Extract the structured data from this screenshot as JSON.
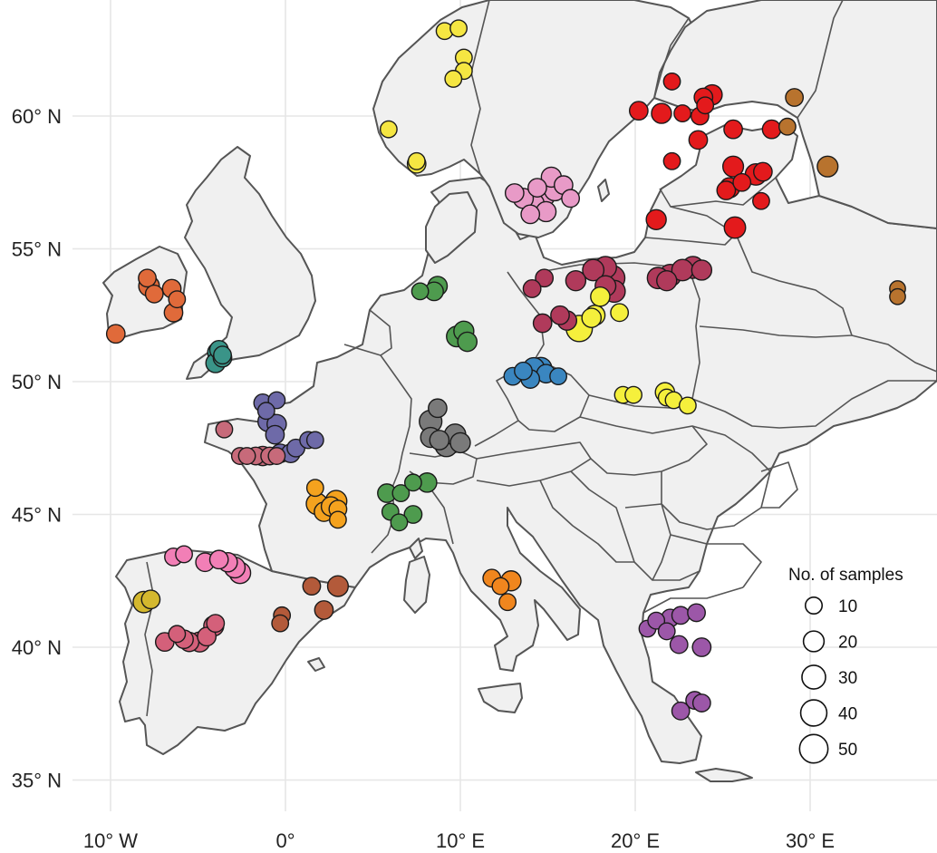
{
  "chart_data": {
    "type": "scatter",
    "x_axis": {
      "ticks": [
        {
          "value": -10,
          "label": "10° W"
        },
        {
          "value": 0,
          "label": "0°"
        },
        {
          "value": 10,
          "label": "10° E"
        },
        {
          "value": 20,
          "label": "20° E"
        },
        {
          "value": 30,
          "label": "30° E"
        }
      ],
      "range": [
        -11,
        36
      ]
    },
    "y_axis": {
      "ticks": [
        {
          "value": 60,
          "label": "60° N"
        },
        {
          "value": 55,
          "label": "55° N"
        },
        {
          "value": 50,
          "label": "50° N"
        },
        {
          "value": 45,
          "label": "45° N"
        },
        {
          "value": 40,
          "label": "40° N"
        },
        {
          "value": 35,
          "label": "35° N"
        }
      ],
      "range": [
        34.2,
        63.5
      ]
    },
    "grid": true,
    "legend": {
      "title": "No. of samples",
      "placement": "bottom-right",
      "sizes": [
        {
          "value": 10,
          "label": "10"
        },
        {
          "value": 20,
          "label": "20"
        },
        {
          "value": 30,
          "label": "30"
        },
        {
          "value": 40,
          "label": "40"
        },
        {
          "value": 50,
          "label": "50"
        }
      ]
    },
    "points": [
      {
        "lon": 9.1,
        "lat": 63.2,
        "n": 10,
        "color": "#f5e642"
      },
      {
        "lon": 9.9,
        "lat": 63.3,
        "n": 10,
        "color": "#f5e642"
      },
      {
        "lon": 10.2,
        "lat": 62.2,
        "n": 10,
        "color": "#f5e642"
      },
      {
        "lon": 10.2,
        "lat": 61.7,
        "n": 10,
        "color": "#f5e642"
      },
      {
        "lon": 9.6,
        "lat": 61.4,
        "n": 10,
        "color": "#f5e642"
      },
      {
        "lon": 5.9,
        "lat": 59.5,
        "n": 10,
        "color": "#f5e642"
      },
      {
        "lon": 7.5,
        "lat": 58.3,
        "n": 10,
        "color": "#f5e642"
      },
      {
        "lon": 7.5,
        "lat": 58.2,
        "n": 14,
        "color": "#f5e642"
      },
      {
        "lon": 15.2,
        "lat": 57.7,
        "n": 18,
        "color": "#e89ac7"
      },
      {
        "lon": 15.4,
        "lat": 57.2,
        "n": 20,
        "color": "#e89ac7"
      },
      {
        "lon": 14.8,
        "lat": 57.0,
        "n": 22,
        "color": "#e89ac7"
      },
      {
        "lon": 13.1,
        "lat": 57.1,
        "n": 14,
        "color": "#e89ac7"
      },
      {
        "lon": 13.6,
        "lat": 56.9,
        "n": 18,
        "color": "#e89ac7"
      },
      {
        "lon": 14.2,
        "lat": 56.7,
        "n": 20,
        "color": "#e89ac7"
      },
      {
        "lon": 14.9,
        "lat": 56.4,
        "n": 18,
        "color": "#e89ac7"
      },
      {
        "lon": 14.0,
        "lat": 56.3,
        "n": 14,
        "color": "#e89ac7"
      },
      {
        "lon": 16.3,
        "lat": 56.9,
        "n": 12,
        "color": "#e89ac7"
      },
      {
        "lon": 15.9,
        "lat": 57.4,
        "n": 14,
        "color": "#e89ac7"
      },
      {
        "lon": 14.4,
        "lat": 57.3,
        "n": 14,
        "color": "#e89ac7"
      },
      {
        "lon": 22.1,
        "lat": 61.3,
        "n": 10,
        "color": "#e31a1c"
      },
      {
        "lon": 24.4,
        "lat": 60.8,
        "n": 18,
        "color": "#e31a1c"
      },
      {
        "lon": 23.9,
        "lat": 60.7,
        "n": 14,
        "color": "#e31a1c"
      },
      {
        "lon": 24.0,
        "lat": 60.4,
        "n": 10,
        "color": "#e31a1c"
      },
      {
        "lon": 20.2,
        "lat": 60.2,
        "n": 14,
        "color": "#e31a1c"
      },
      {
        "lon": 21.5,
        "lat": 60.1,
        "n": 18,
        "color": "#e31a1c"
      },
      {
        "lon": 22.7,
        "lat": 60.1,
        "n": 10,
        "color": "#e31a1c"
      },
      {
        "lon": 23.7,
        "lat": 60.0,
        "n": 12,
        "color": "#e31a1c"
      },
      {
        "lon": 25.6,
        "lat": 59.5,
        "n": 14,
        "color": "#e31a1c"
      },
      {
        "lon": 27.8,
        "lat": 59.5,
        "n": 14,
        "color": "#e31a1c"
      },
      {
        "lon": 23.6,
        "lat": 59.1,
        "n": 14,
        "color": "#e31a1c"
      },
      {
        "lon": 22.1,
        "lat": 58.3,
        "n": 10,
        "color": "#e31a1c"
      },
      {
        "lon": 25.6,
        "lat": 58.1,
        "n": 20,
        "color": "#e31a1c"
      },
      {
        "lon": 26.9,
        "lat": 57.8,
        "n": 22,
        "color": "#e31a1c"
      },
      {
        "lon": 27.3,
        "lat": 57.9,
        "n": 14,
        "color": "#e31a1c"
      },
      {
        "lon": 25.4,
        "lat": 57.3,
        "n": 18,
        "color": "#e31a1c"
      },
      {
        "lon": 25.2,
        "lat": 57.2,
        "n": 14,
        "color": "#e31a1c"
      },
      {
        "lon": 26.1,
        "lat": 57.5,
        "n": 12,
        "color": "#e31a1c"
      },
      {
        "lon": 27.2,
        "lat": 56.8,
        "n": 10,
        "color": "#e31a1c"
      },
      {
        "lon": 21.2,
        "lat": 56.1,
        "n": 18,
        "color": "#e31a1c"
      },
      {
        "lon": 25.7,
        "lat": 55.8,
        "n": 22,
        "color": "#e31a1c"
      },
      {
        "lon": 29.1,
        "lat": 60.7,
        "n": 12,
        "color": "#b8732e"
      },
      {
        "lon": 28.7,
        "lat": 59.6,
        "n": 10,
        "color": "#b8732e"
      },
      {
        "lon": 31.0,
        "lat": 58.1,
        "n": 20,
        "color": "#b8732e"
      },
      {
        "lon": 35.0,
        "lat": 53.5,
        "n": 8,
        "color": "#b8732e"
      },
      {
        "lon": 35.0,
        "lat": 53.2,
        "n": 8,
        "color": "#b8732e"
      },
      {
        "lon": 14.8,
        "lat": 53.9,
        "n": 12,
        "color": "#b03a5b"
      },
      {
        "lon": 14.1,
        "lat": 53.5,
        "n": 12,
        "color": "#b03a5b"
      },
      {
        "lon": 16.6,
        "lat": 53.8,
        "n": 18,
        "color": "#b03a5b"
      },
      {
        "lon": 17.6,
        "lat": 54.2,
        "n": 22,
        "color": "#b03a5b"
      },
      {
        "lon": 18.3,
        "lat": 54.3,
        "n": 24,
        "color": "#b03a5b"
      },
      {
        "lon": 18.7,
        "lat": 53.9,
        "n": 34,
        "color": "#b03a5b"
      },
      {
        "lon": 18.3,
        "lat": 53.6,
        "n": 20,
        "color": "#b03a5b"
      },
      {
        "lon": 18.8,
        "lat": 53.4,
        "n": 24,
        "color": "#b03a5b"
      },
      {
        "lon": 21.3,
        "lat": 53.9,
        "n": 22,
        "color": "#b03a5b"
      },
      {
        "lon": 22.0,
        "lat": 54.0,
        "n": 24,
        "color": "#b03a5b"
      },
      {
        "lon": 22.7,
        "lat": 54.2,
        "n": 22,
        "color": "#b03a5b"
      },
      {
        "lon": 23.3,
        "lat": 54.3,
        "n": 24,
        "color": "#b03a5b"
      },
      {
        "lon": 23.8,
        "lat": 54.2,
        "n": 18,
        "color": "#b03a5b"
      },
      {
        "lon": 21.8,
        "lat": 53.8,
        "n": 18,
        "color": "#b03a5b"
      },
      {
        "lon": 14.7,
        "lat": 52.2,
        "n": 14,
        "color": "#b03a5b"
      },
      {
        "lon": 15.7,
        "lat": 52.5,
        "n": 14,
        "color": "#b03a5b"
      },
      {
        "lon": 16.1,
        "lat": 52.3,
        "n": 16,
        "color": "#b03a5b"
      },
      {
        "lon": 16.8,
        "lat": 52.0,
        "n": 40,
        "color": "#f5f03c"
      },
      {
        "lon": 17.5,
        "lat": 52.4,
        "n": 16,
        "color": "#f5f03c"
      },
      {
        "lon": 17.7,
        "lat": 52.5,
        "n": 18,
        "color": "#f5f03c"
      },
      {
        "lon": 18.0,
        "lat": 53.2,
        "n": 16,
        "color": "#f5f03c"
      },
      {
        "lon": 19.1,
        "lat": 52.6,
        "n": 12,
        "color": "#f5f03c"
      },
      {
        "lon": 19.3,
        "lat": 49.5,
        "n": 10,
        "color": "#f5f03c"
      },
      {
        "lon": 19.9,
        "lat": 49.5,
        "n": 10,
        "color": "#f5f03c"
      },
      {
        "lon": 21.7,
        "lat": 49.6,
        "n": 16,
        "color": "#f5f03c"
      },
      {
        "lon": 21.8,
        "lat": 49.4,
        "n": 10,
        "color": "#f5f03c"
      },
      {
        "lon": 22.2,
        "lat": 49.3,
        "n": 10,
        "color": "#f5f03c"
      },
      {
        "lon": 23.0,
        "lat": 49.1,
        "n": 10,
        "color": "#f5f03c"
      },
      {
        "lon": 13.0,
        "lat": 50.2,
        "n": 12,
        "color": "#3a86c0"
      },
      {
        "lon": 13.6,
        "lat": 50.4,
        "n": 12,
        "color": "#3a86c0"
      },
      {
        "lon": 14.2,
        "lat": 50.5,
        "n": 22,
        "color": "#3a86c0"
      },
      {
        "lon": 14.6,
        "lat": 50.5,
        "n": 24,
        "color": "#3a86c0"
      },
      {
        "lon": 14.9,
        "lat": 50.3,
        "n": 14,
        "color": "#3a86c0"
      },
      {
        "lon": 14.0,
        "lat": 50.1,
        "n": 14,
        "color": "#3a86c0"
      },
      {
        "lon": 15.6,
        "lat": 50.2,
        "n": 10,
        "color": "#3a86c0"
      },
      {
        "lon": 7.7,
        "lat": 53.4,
        "n": 10,
        "color": "#4e9b4e"
      },
      {
        "lon": 8.7,
        "lat": 53.6,
        "n": 16,
        "color": "#4e9b4e"
      },
      {
        "lon": 8.5,
        "lat": 53.4,
        "n": 14,
        "color": "#4e9b4e"
      },
      {
        "lon": 9.8,
        "lat": 51.7,
        "n": 20,
        "color": "#4e9b4e"
      },
      {
        "lon": 10.2,
        "lat": 51.9,
        "n": 18,
        "color": "#4e9b4e"
      },
      {
        "lon": 10.4,
        "lat": 51.5,
        "n": 16,
        "color": "#4e9b4e"
      },
      {
        "lon": 5.8,
        "lat": 45.8,
        "n": 14,
        "color": "#4e9b4e"
      },
      {
        "lon": 6.6,
        "lat": 45.8,
        "n": 10,
        "color": "#4e9b4e"
      },
      {
        "lon": 7.3,
        "lat": 46.2,
        "n": 10,
        "color": "#4e9b4e"
      },
      {
        "lon": 8.1,
        "lat": 46.2,
        "n": 16,
        "color": "#4e9b4e"
      },
      {
        "lon": 6.0,
        "lat": 45.1,
        "n": 10,
        "color": "#4e9b4e"
      },
      {
        "lon": 6.5,
        "lat": 44.7,
        "n": 10,
        "color": "#4e9b4e"
      },
      {
        "lon": 7.3,
        "lat": 45.0,
        "n": 12,
        "color": "#4e9b4e"
      },
      {
        "lon": 8.3,
        "lat": 48.5,
        "n": 26,
        "color": "#7a7a7a"
      },
      {
        "lon": 8.7,
        "lat": 49.0,
        "n": 14,
        "color": "#7a7a7a"
      },
      {
        "lon": 8.3,
        "lat": 47.9,
        "n": 18,
        "color": "#7a7a7a"
      },
      {
        "lon": 8.8,
        "lat": 47.8,
        "n": 16,
        "color": "#7a7a7a"
      },
      {
        "lon": 9.2,
        "lat": 47.6,
        "n": 26,
        "color": "#7a7a7a"
      },
      {
        "lon": 9.7,
        "lat": 48.0,
        "n": 22,
        "color": "#7a7a7a"
      },
      {
        "lon": 10.0,
        "lat": 47.7,
        "n": 18,
        "color": "#7a7a7a"
      },
      {
        "lon": 1.7,
        "lat": 46.0,
        "n": 10,
        "color": "#f4a21e"
      },
      {
        "lon": 1.8,
        "lat": 45.4,
        "n": 22,
        "color": "#f4a21e"
      },
      {
        "lon": 2.2,
        "lat": 45.1,
        "n": 16,
        "color": "#f4a21e"
      },
      {
        "lon": 2.6,
        "lat": 45.3,
        "n": 16,
        "color": "#f4a21e"
      },
      {
        "lon": 2.9,
        "lat": 45.5,
        "n": 22,
        "color": "#f4a21e"
      },
      {
        "lon": 3.0,
        "lat": 45.2,
        "n": 12,
        "color": "#f4a21e"
      },
      {
        "lon": 3.0,
        "lat": 44.8,
        "n": 10,
        "color": "#f4a21e"
      },
      {
        "lon": 11.8,
        "lat": 42.6,
        "n": 12,
        "color": "#f0861e"
      },
      {
        "lon": 12.3,
        "lat": 42.3,
        "n": 10,
        "color": "#f0861e"
      },
      {
        "lon": 12.9,
        "lat": 42.5,
        "n": 18,
        "color": "#f0861e"
      },
      {
        "lon": 12.7,
        "lat": 41.7,
        "n": 10,
        "color": "#f0861e"
      },
      {
        "lon": -1.3,
        "lat": 49.2,
        "n": 12,
        "color": "#6e6aa8"
      },
      {
        "lon": -0.5,
        "lat": 49.3,
        "n": 10,
        "color": "#6e6aa8"
      },
      {
        "lon": -1.1,
        "lat": 48.9,
        "n": 10,
        "color": "#6e6aa8"
      },
      {
        "lon": -1.0,
        "lat": 48.5,
        "n": 18,
        "color": "#6e6aa8"
      },
      {
        "lon": -0.5,
        "lat": 48.4,
        "n": 16,
        "color": "#6e6aa8"
      },
      {
        "lon": -0.6,
        "lat": 48.0,
        "n": 14,
        "color": "#6e6aa8"
      },
      {
        "lon": -0.3,
        "lat": 47.3,
        "n": 14,
        "color": "#6e6aa8"
      },
      {
        "lon": 0.3,
        "lat": 47.3,
        "n": 14,
        "color": "#6e6aa8"
      },
      {
        "lon": 0.6,
        "lat": 47.5,
        "n": 12,
        "color": "#6e6aa8"
      },
      {
        "lon": 1.3,
        "lat": 47.8,
        "n": 10,
        "color": "#6e6aa8"
      },
      {
        "lon": 1.7,
        "lat": 47.8,
        "n": 10,
        "color": "#6e6aa8"
      },
      {
        "lon": -3.5,
        "lat": 48.2,
        "n": 10,
        "color": "#c76a7a"
      },
      {
        "lon": -2.6,
        "lat": 47.2,
        "n": 10,
        "color": "#c76a7a"
      },
      {
        "lon": -2.2,
        "lat": 47.2,
        "n": 10,
        "color": "#c76a7a"
      },
      {
        "lon": -1.7,
        "lat": 47.2,
        "n": 12,
        "color": "#c76a7a"
      },
      {
        "lon": -1.3,
        "lat": 47.2,
        "n": 16,
        "color": "#c76a7a"
      },
      {
        "lon": -0.9,
        "lat": 47.2,
        "n": 12,
        "color": "#c76a7a"
      },
      {
        "lon": -0.5,
        "lat": 47.2,
        "n": 10,
        "color": "#c76a7a"
      },
      {
        "lon": -3.8,
        "lat": 51.2,
        "n": 14,
        "color": "#3a9488"
      },
      {
        "lon": -3.9,
        "lat": 51.1,
        "n": 16,
        "color": "#3a9488"
      },
      {
        "lon": -3.6,
        "lat": 50.9,
        "n": 14,
        "color": "#3a9488"
      },
      {
        "lon": -4.0,
        "lat": 50.7,
        "n": 16,
        "color": "#3a9488"
      },
      {
        "lon": -3.6,
        "lat": 51.0,
        "n": 12,
        "color": "#3a9488"
      },
      {
        "lon": -7.9,
        "lat": 53.9,
        "n": 12,
        "color": "#e06a3a"
      },
      {
        "lon": -7.8,
        "lat": 53.6,
        "n": 20,
        "color": "#e06a3a"
      },
      {
        "lon": -7.5,
        "lat": 53.3,
        "n": 12,
        "color": "#e06a3a"
      },
      {
        "lon": -6.5,
        "lat": 53.5,
        "n": 14,
        "color": "#e06a3a"
      },
      {
        "lon": -6.2,
        "lat": 53.1,
        "n": 10,
        "color": "#e06a3a"
      },
      {
        "lon": -6.4,
        "lat": 52.6,
        "n": 14,
        "color": "#e06a3a"
      },
      {
        "lon": -9.7,
        "lat": 51.8,
        "n": 14,
        "color": "#e06a3a"
      },
      {
        "lon": -6.4,
        "lat": 43.4,
        "n": 12,
        "color": "#f27fb6"
      },
      {
        "lon": -5.8,
        "lat": 43.5,
        "n": 10,
        "color": "#f27fb6"
      },
      {
        "lon": -4.6,
        "lat": 43.2,
        "n": 14,
        "color": "#f27fb6"
      },
      {
        "lon": -3.8,
        "lat": 43.3,
        "n": 14,
        "color": "#f27fb6"
      },
      {
        "lon": -3.3,
        "lat": 43.2,
        "n": 16,
        "color": "#f27fb6"
      },
      {
        "lon": -2.9,
        "lat": 43.0,
        "n": 20,
        "color": "#f27fb6"
      },
      {
        "lon": -2.6,
        "lat": 42.8,
        "n": 22,
        "color": "#f27fb6"
      },
      {
        "lon": -6.9,
        "lat": 40.2,
        "n": 14,
        "color": "#d4607a"
      },
      {
        "lon": -6.2,
        "lat": 40.5,
        "n": 10,
        "color": "#d4607a"
      },
      {
        "lon": -5.8,
        "lat": 40.3,
        "n": 14,
        "color": "#d4607a"
      },
      {
        "lon": -5.5,
        "lat": 40.2,
        "n": 16,
        "color": "#d4607a"
      },
      {
        "lon": -4.9,
        "lat": 40.2,
        "n": 18,
        "color": "#d4607a"
      },
      {
        "lon": -4.5,
        "lat": 40.4,
        "n": 14,
        "color": "#d4607a"
      },
      {
        "lon": -4.1,
        "lat": 40.8,
        "n": 18,
        "color": "#d4607a"
      },
      {
        "lon": -4.0,
        "lat": 40.9,
        "n": 12,
        "color": "#d4607a"
      },
      {
        "lon": -8.1,
        "lat": 41.7,
        "n": 22,
        "color": "#d4b82e"
      },
      {
        "lon": -7.7,
        "lat": 41.8,
        "n": 14,
        "color": "#d4b82e"
      },
      {
        "lon": 1.5,
        "lat": 42.3,
        "n": 12,
        "color": "#b35a3a"
      },
      {
        "lon": 2.2,
        "lat": 41.4,
        "n": 14,
        "color": "#b35a3a"
      },
      {
        "lon": 3.0,
        "lat": 42.3,
        "n": 20,
        "color": "#b35a3a"
      },
      {
        "lon": -0.2,
        "lat": 41.2,
        "n": 10,
        "color": "#b35a3a"
      },
      {
        "lon": -0.3,
        "lat": 40.9,
        "n": 10,
        "color": "#b35a3a"
      },
      {
        "lon": 20.7,
        "lat": 40.7,
        "n": 10,
        "color": "#9c57a8"
      },
      {
        "lon": 21.2,
        "lat": 41.0,
        "n": 10,
        "color": "#9c57a8"
      },
      {
        "lon": 22.0,
        "lat": 41.1,
        "n": 12,
        "color": "#9c57a8"
      },
      {
        "lon": 22.6,
        "lat": 41.2,
        "n": 12,
        "color": "#9c57a8"
      },
      {
        "lon": 23.5,
        "lat": 41.3,
        "n": 12,
        "color": "#9c57a8"
      },
      {
        "lon": 21.8,
        "lat": 40.6,
        "n": 10,
        "color": "#9c57a8"
      },
      {
        "lon": 22.5,
        "lat": 40.1,
        "n": 12,
        "color": "#9c57a8"
      },
      {
        "lon": 23.8,
        "lat": 40.0,
        "n": 14,
        "color": "#9c57a8"
      },
      {
        "lon": 23.4,
        "lat": 38.0,
        "n": 12,
        "color": "#9c57a8"
      },
      {
        "lon": 23.8,
        "lat": 37.9,
        "n": 12,
        "color": "#9c57a8"
      },
      {
        "lon": 22.6,
        "lat": 37.6,
        "n": 12,
        "color": "#9c57a8"
      }
    ]
  }
}
